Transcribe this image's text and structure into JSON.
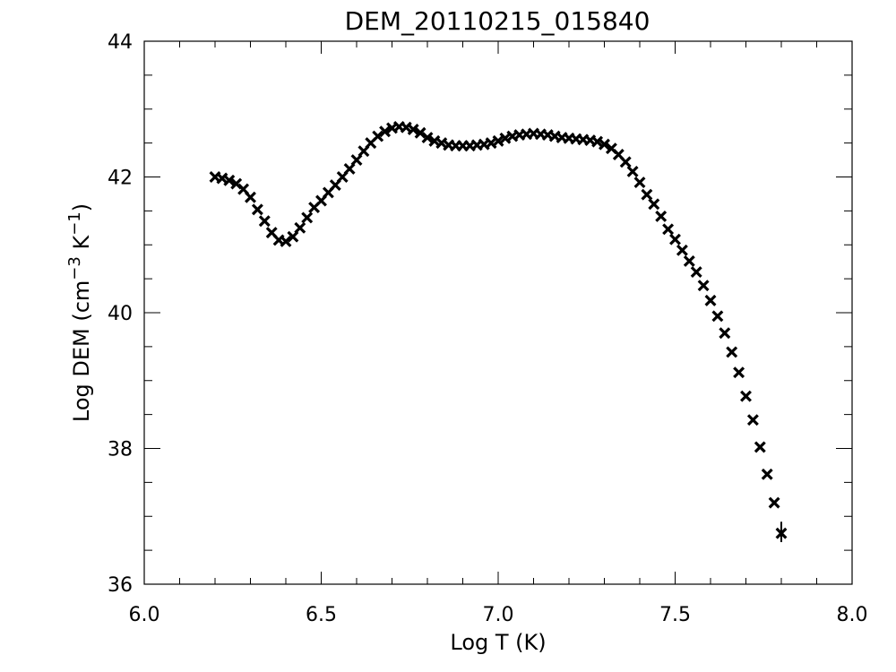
{
  "chart_data": {
    "type": "scatter",
    "title": "DEM_20110215_015840",
    "xlabel": "Log T (K)",
    "ylabel_parts": {
      "prefix": "Log DEM (cm",
      "exp1": "−3",
      "middle": " K",
      "exp2": "−1",
      "suffix": ")"
    },
    "xlim": [
      6.0,
      8.0
    ],
    "ylim": [
      36,
      44
    ],
    "xticks": [
      6.0,
      6.5,
      7.0,
      7.5,
      8.0
    ],
    "xtick_labels": [
      "6.0",
      "6.5",
      "7.0",
      "7.5",
      "8.0"
    ],
    "xminor_step": 0.1,
    "yticks": [
      36,
      38,
      40,
      42,
      44
    ],
    "ytick_labels": [
      "36",
      "38",
      "40",
      "42",
      "44"
    ],
    "yminor_step": 0.5,
    "grid": false,
    "marker": "x",
    "marker_color": "#000000",
    "x": [
      6.2,
      6.22,
      6.24,
      6.26,
      6.28,
      6.3,
      6.32,
      6.34,
      6.36,
      6.38,
      6.4,
      6.42,
      6.44,
      6.46,
      6.48,
      6.5,
      6.52,
      6.54,
      6.56,
      6.58,
      6.6,
      6.62,
      6.64,
      6.66,
      6.68,
      6.7,
      6.72,
      6.74,
      6.76,
      6.78,
      6.8,
      6.82,
      6.84,
      6.86,
      6.88,
      6.9,
      6.92,
      6.94,
      6.96,
      6.98,
      7.0,
      7.02,
      7.04,
      7.06,
      7.08,
      7.1,
      7.12,
      7.14,
      7.16,
      7.18,
      7.2,
      7.22,
      7.24,
      7.26,
      7.28,
      7.3,
      7.32,
      7.34,
      7.36,
      7.38,
      7.4,
      7.42,
      7.44,
      7.46,
      7.48,
      7.5,
      7.52,
      7.54,
      7.56,
      7.58,
      7.6,
      7.62,
      7.64,
      7.66,
      7.68,
      7.7,
      7.72,
      7.74,
      7.76,
      7.78,
      7.8
    ],
    "y": [
      42.0,
      41.98,
      41.95,
      41.9,
      41.82,
      41.7,
      41.52,
      41.35,
      41.18,
      41.07,
      41.05,
      41.12,
      41.25,
      41.4,
      41.55,
      41.65,
      41.77,
      41.88,
      42.0,
      42.12,
      42.25,
      42.38,
      42.5,
      42.6,
      42.67,
      42.72,
      42.74,
      42.73,
      42.7,
      42.65,
      42.58,
      42.53,
      42.5,
      42.47,
      42.46,
      42.46,
      42.46,
      42.47,
      42.48,
      42.5,
      42.53,
      42.57,
      42.6,
      42.62,
      42.63,
      42.64,
      42.63,
      42.62,
      42.6,
      42.58,
      42.57,
      42.56,
      42.55,
      42.54,
      42.52,
      42.48,
      42.42,
      42.33,
      42.22,
      42.08,
      41.92,
      41.74,
      41.6,
      41.42,
      41.23,
      41.08,
      40.92,
      40.76,
      40.6,
      40.4,
      40.18,
      39.95,
      39.7,
      39.42,
      39.12,
      38.77,
      38.42,
      38.02,
      37.62,
      37.2,
      36.75
    ],
    "error_bars": [
      {
        "x": 7.8,
        "y_low": 36.62,
        "y_high": 36.92
      }
    ]
  }
}
